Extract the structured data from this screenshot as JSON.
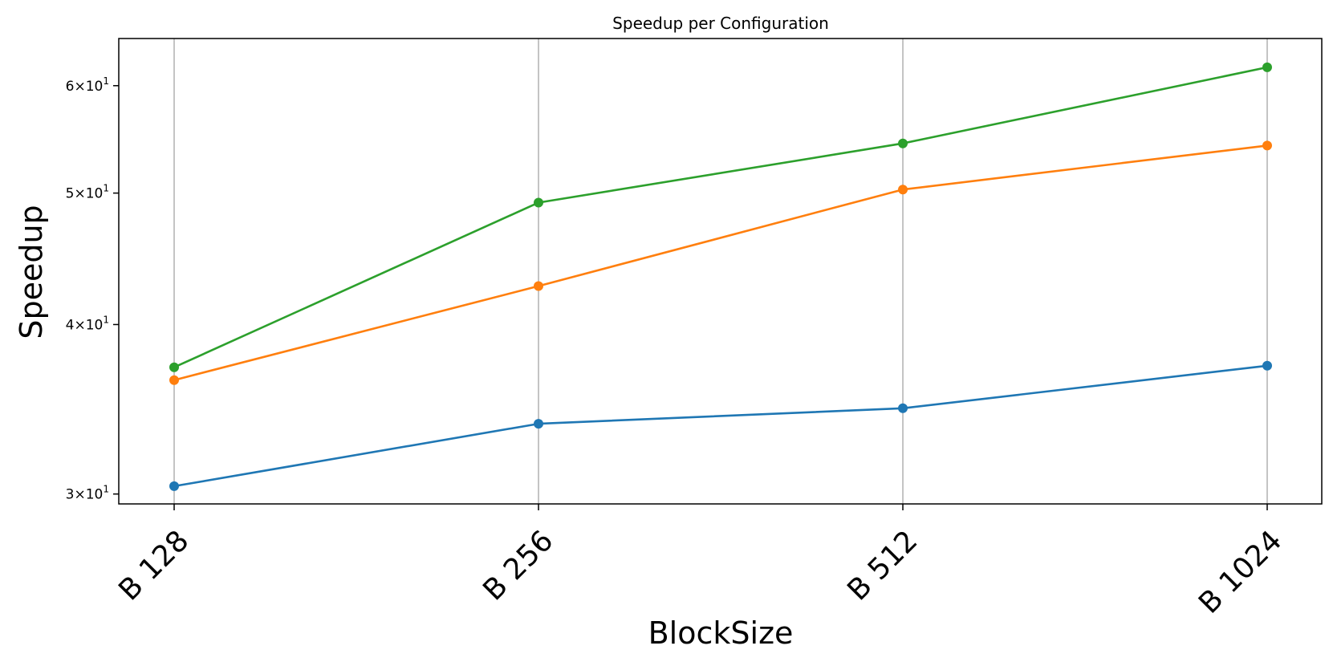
{
  "chart_data": {
    "type": "line",
    "title": "Speedup per Configuration",
    "xlabel": "BlockSize",
    "ylabel": "Speedup",
    "categories": [
      "B 128",
      "B 256",
      "B 512",
      "B 1024"
    ],
    "yscale": "log",
    "ylim": [
      29.5,
      65
    ],
    "yticks": [
      {
        "value": 30,
        "base": "3",
        "mult": "×",
        "pow": "10",
        "exp": "1"
      },
      {
        "value": 40,
        "base": "4",
        "mult": "×",
        "pow": "10",
        "exp": "1"
      },
      {
        "value": 50,
        "base": "5",
        "mult": "×",
        "pow": "10",
        "exp": "1"
      },
      {
        "value": 60,
        "base": "6",
        "mult": "×",
        "pow": "10",
        "exp": "1"
      }
    ],
    "grid": "vertical",
    "series": [
      {
        "color": "#1f77b4",
        "values": [
          30.4,
          33.8,
          34.7,
          37.3
        ]
      },
      {
        "color": "#ff7f0e",
        "values": [
          36.4,
          42.7,
          50.3,
          54.2
        ]
      },
      {
        "color": "#2ca02c",
        "values": [
          37.2,
          49.2,
          54.4,
          61.9
        ]
      }
    ]
  }
}
